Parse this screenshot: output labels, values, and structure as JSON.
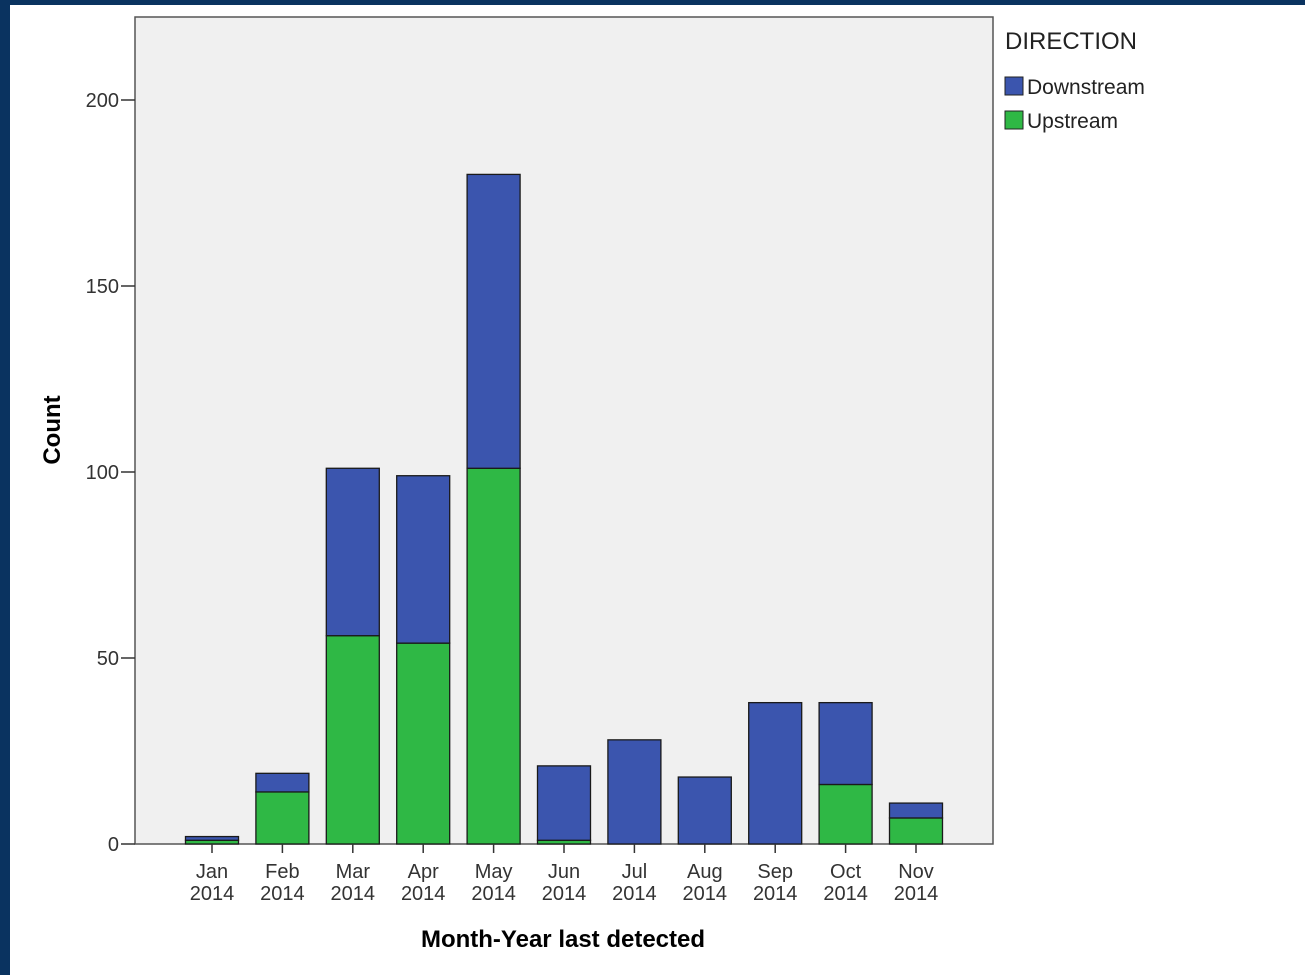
{
  "chart_data": {
    "type": "bar",
    "stacked": true,
    "categories": [
      [
        "Jan",
        "2014"
      ],
      [
        "Feb",
        "2014"
      ],
      [
        "Mar",
        "2014"
      ],
      [
        "Apr",
        "2014"
      ],
      [
        "May",
        "2014"
      ],
      [
        "Jun",
        "2014"
      ],
      [
        "Jul",
        "2014"
      ],
      [
        "Aug",
        "2014"
      ],
      [
        "Sep",
        "2014"
      ],
      [
        "Oct",
        "2014"
      ],
      [
        "Nov",
        "2014"
      ]
    ],
    "series": [
      {
        "name": "Upstream",
        "color": "#2fb845",
        "values": [
          1,
          14,
          56,
          54,
          101,
          1,
          0,
          0,
          0,
          16,
          7
        ]
      },
      {
        "name": "Downstream",
        "color": "#3b55ae",
        "values": [
          1,
          5,
          45,
          45,
          79,
          20,
          28,
          18,
          38,
          22,
          4
        ]
      }
    ],
    "xlabel": "Month-Year last detected",
    "ylabel": "Count",
    "ylim": [
      0,
      200
    ],
    "yticks": [
      0,
      50,
      100,
      150,
      200
    ],
    "legend": {
      "title": "DIRECTION",
      "position": "top-right",
      "entries": [
        "Downstream",
        "Upstream"
      ]
    },
    "plot_background": "#f0f0f0",
    "grid": false
  }
}
